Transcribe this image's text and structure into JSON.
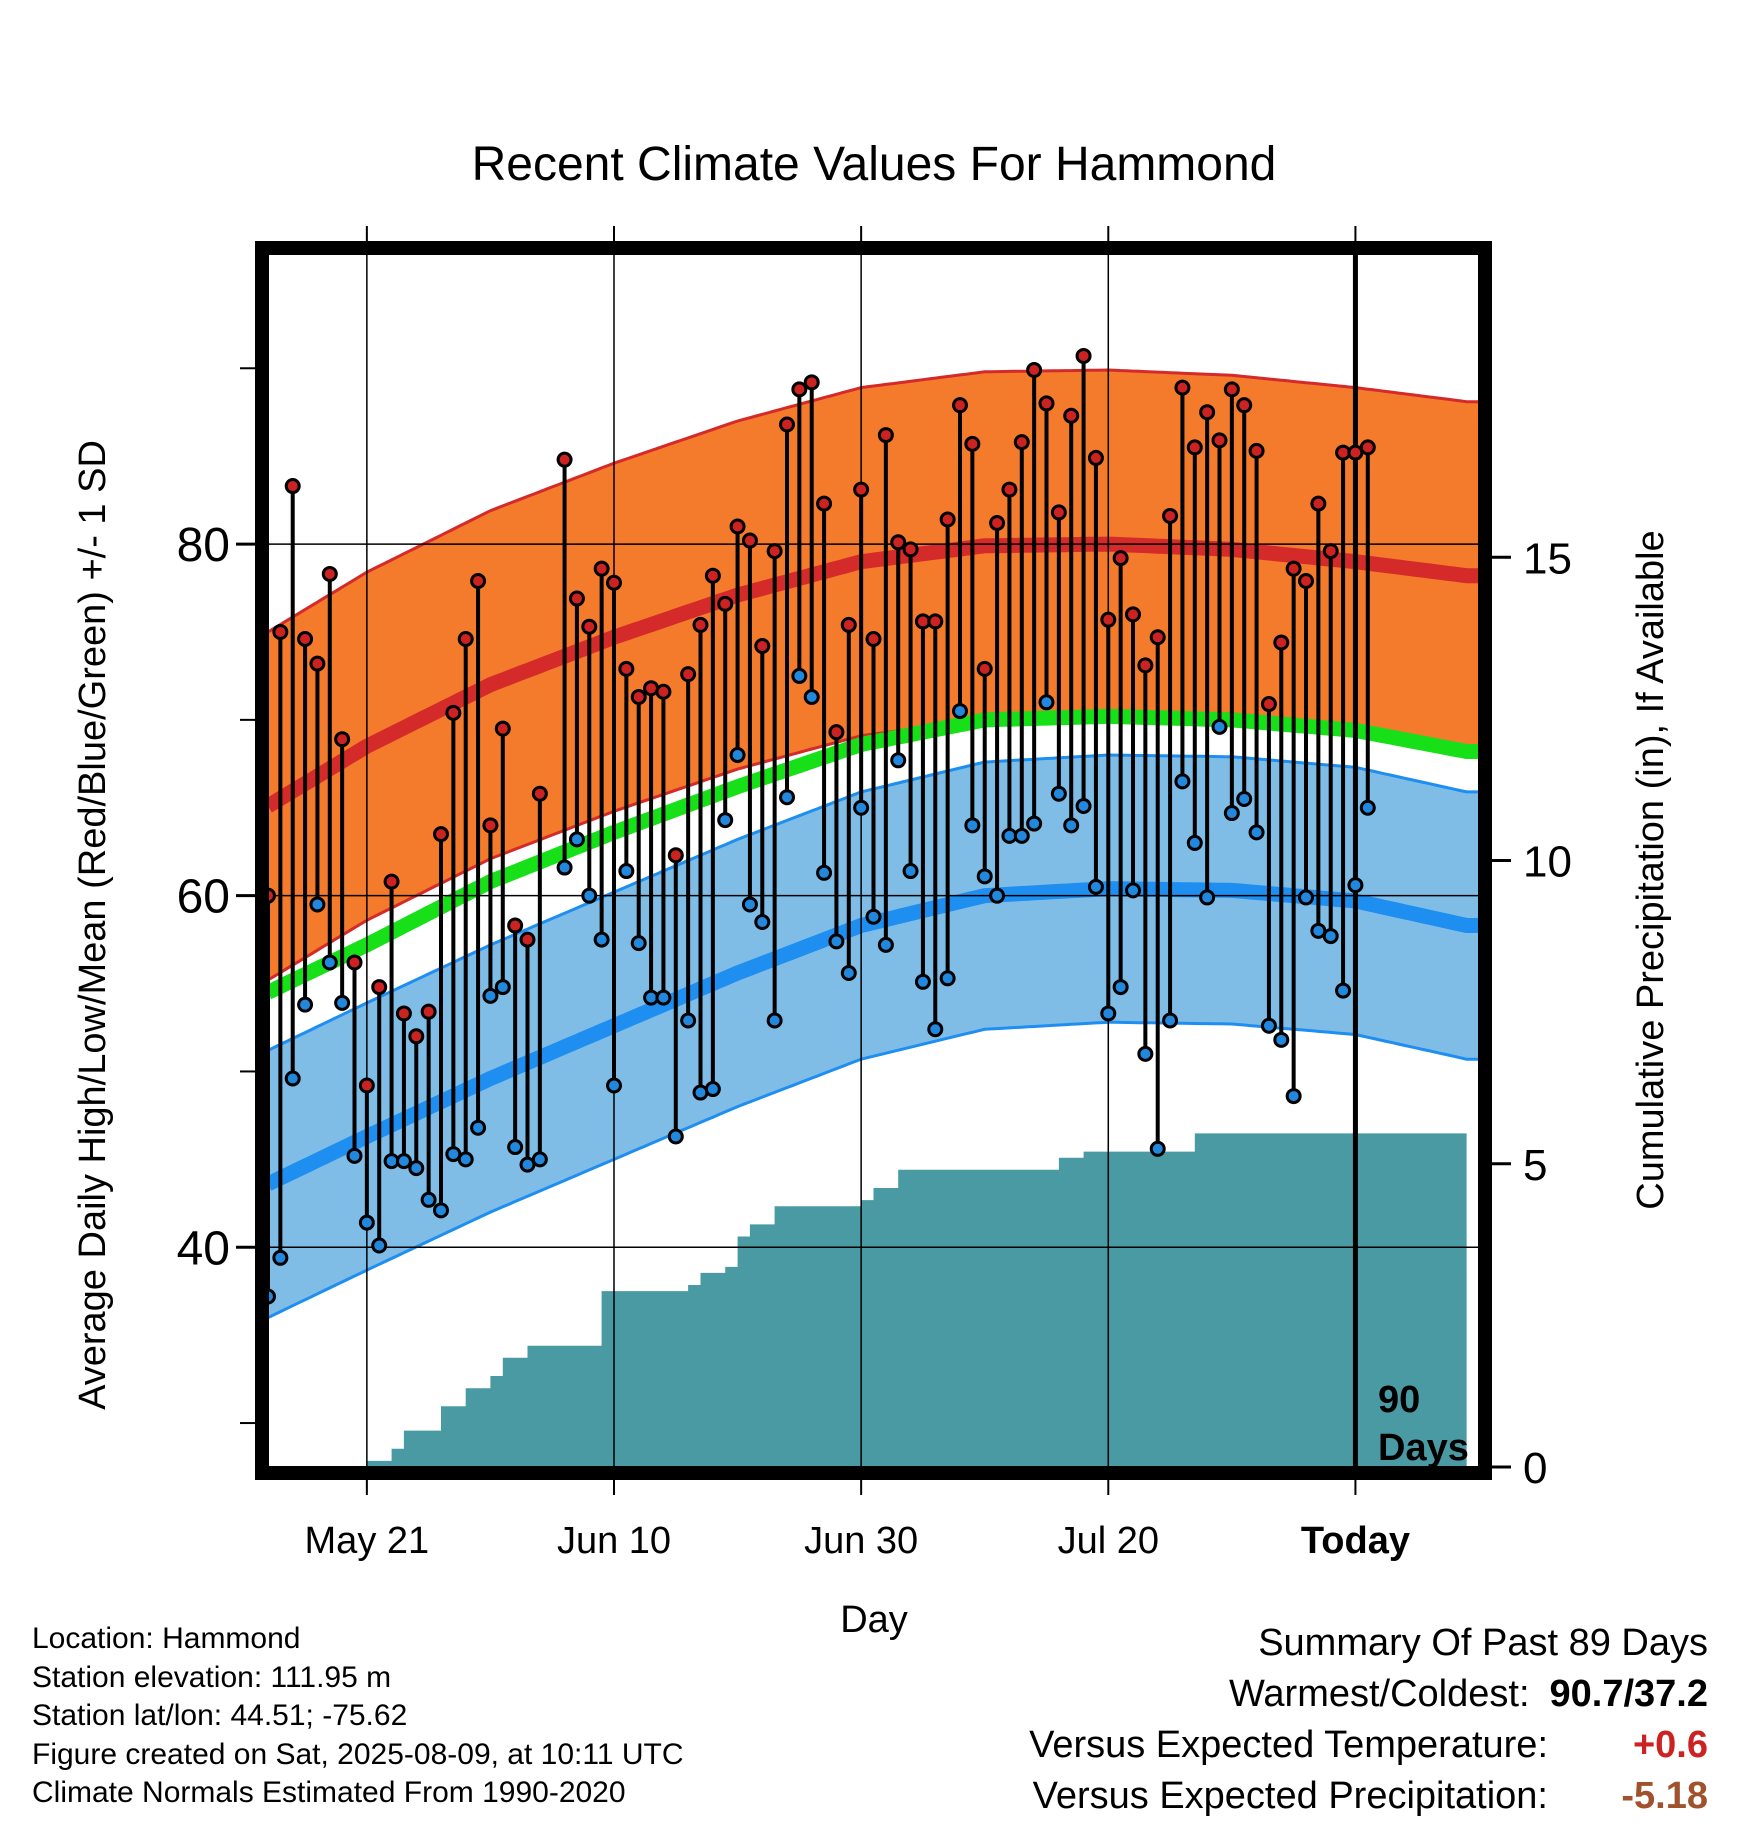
{
  "title": "Recent Climate Values For Hammond",
  "y_left_label": "Average Daily High/Low/Mean (Red/Blue/Green) +/- 1 SD",
  "y_right_label": "Cumulative Precipitation (in), If Available",
  "x_label": "Day",
  "window_label": [
    "90",
    "Days"
  ],
  "info": {
    "location": "Location: Hammond",
    "elevation": "Station elevation: 111.95 m",
    "latlon": "Station lat/lon: 44.51; -75.62",
    "created": "Figure created on Sat, 2025-08-09, at 10:11 UTC",
    "normals": "Climate Normals Estimated From 1990-2020"
  },
  "summary": {
    "heading": "Summary Of Past 89 Days",
    "warm_cold_label": "Warmest/Coldest:",
    "warm_cold_value": "90.7/37.2",
    "temp_label": "Versus Expected Temperature:",
    "temp_value": "+0.6",
    "prcp_label": "Versus Expected Precipitation:",
    "prcp_value": "-5.18"
  },
  "colors": {
    "high_band": "#f47a2c",
    "high_line": "#d42a2a",
    "low_band": "#80bde6",
    "low_line": "#1e8ef0",
    "mean_line": "#18e018",
    "precip": "#4a9aa4",
    "obs_high_marker": "#cc2222",
    "obs_low_marker": "#2288dd"
  },
  "chart_data": {
    "type": "line",
    "title": "Recent Climate Values For Hammond",
    "xlabel": "Day",
    "ylabel": "Average Daily High/Low/Mean (Red/Blue/Green) +/- 1 SD",
    "y2label": "Cumulative Precipitation (in), If Available",
    "x_range": [
      -88,
      10
    ],
    "ylim": [
      27.5,
      96.5
    ],
    "y2lim": [
      0,
      20
    ],
    "x_ticks": [
      {
        "x": -80,
        "label": "May 21"
      },
      {
        "x": -60,
        "label": "Jun 10"
      },
      {
        "x": -40,
        "label": "Jun 30"
      },
      {
        "x": -20,
        "label": "Jul 20"
      },
      {
        "x": 0,
        "label": "Today"
      }
    ],
    "y_ticks": [
      40,
      60,
      80
    ],
    "y2_ticks": [
      0,
      5,
      10,
      15
    ],
    "normals_x": [
      -88,
      -80,
      -70,
      -60,
      -50,
      -40,
      -30,
      -20,
      -10,
      0,
      9
    ],
    "normal_high": [
      65.1,
      68.5,
      72.0,
      74.7,
      77.1,
      79.0,
      79.9,
      80.0,
      79.7,
      79.0,
      78.2
    ],
    "normal_high_sd": 9.9,
    "normal_low": [
      43.6,
      46.3,
      49.6,
      52.6,
      55.6,
      58.3,
      60.0,
      60.4,
      60.3,
      59.7,
      58.3
    ],
    "normal_low_sd": 7.6,
    "normal_mean": [
      54.5,
      57.2,
      60.8,
      63.6,
      66.2,
      68.6,
      70.0,
      70.2,
      70.0,
      69.4,
      68.2
    ],
    "observed": {
      "x_start": -88,
      "highs": [
        60.0,
        75.0,
        83.3,
        74.6,
        73.2,
        78.3,
        68.9,
        56.2,
        49.2,
        54.8,
        60.8,
        53.3,
        52.0,
        53.4,
        63.5,
        70.4,
        74.6,
        77.9,
        64.0,
        69.5,
        58.3,
        57.5,
        65.8,
        null,
        84.8,
        76.9,
        75.3,
        78.6,
        77.8,
        72.9,
        71.3,
        71.8,
        71.6,
        62.3,
        72.6,
        75.4,
        78.2,
        76.6,
        81.0,
        80.2,
        74.2,
        79.6,
        86.8,
        88.8,
        89.2,
        82.3,
        69.3,
        75.4,
        83.1,
        74.6,
        86.2,
        80.1,
        79.7,
        75.6,
        75.6,
        81.4,
        87.9,
        85.7,
        72.9,
        81.2,
        83.1,
        85.8,
        89.9,
        88.0,
        81.8,
        87.3,
        90.7,
        84.9,
        75.7,
        79.2,
        76.0,
        73.1,
        74.7,
        81.6,
        88.9,
        85.5,
        87.5,
        85.9,
        88.8,
        87.9,
        85.3,
        70.9,
        74.4,
        78.6,
        77.9,
        82.3,
        79.6,
        85.2,
        85.2,
        85.5
      ],
      "lows": [
        37.2,
        39.4,
        49.6,
        53.8,
        59.5,
        56.2,
        53.9,
        45.2,
        41.4,
        40.1,
        44.9,
        44.9,
        44.5,
        42.7,
        42.1,
        45.3,
        45.0,
        46.8,
        54.3,
        54.8,
        45.7,
        44.7,
        45.0,
        null,
        61.6,
        63.2,
        60.0,
        57.5,
        49.2,
        61.4,
        57.3,
        54.2,
        54.2,
        46.3,
        52.9,
        48.8,
        49.0,
        64.3,
        68.0,
        59.5,
        58.5,
        52.9,
        65.6,
        72.5,
        71.3,
        61.3,
        57.4,
        55.6,
        65.0,
        58.8,
        57.2,
        67.7,
        61.4,
        55.1,
        52.4,
        55.3,
        70.5,
        64.0,
        61.1,
        60.0,
        63.4,
        63.4,
        64.1,
        71.0,
        65.8,
        64.0,
        65.1,
        60.5,
        53.3,
        54.8,
        60.3,
        51.0,
        45.6,
        52.9,
        66.5,
        63.0,
        59.9,
        69.6,
        64.7,
        65.5,
        63.6,
        52.6,
        51.8,
        48.6,
        59.9,
        58.0,
        57.7,
        54.6,
        60.6,
        65.0
      ]
    },
    "precip_cumulative": {
      "x": [
        -88,
        -83,
        -80,
        -78,
        -77,
        -74,
        -72,
        -70,
        -69,
        -67,
        -62,
        -61,
        -56,
        -54,
        -53,
        -51,
        -50,
        -49,
        -47,
        -45,
        -42,
        -40,
        -39,
        -37,
        -31,
        -29,
        -26,
        -24,
        -22,
        -20,
        -18,
        -13,
        -10,
        -6,
        0,
        9
      ],
      "values": [
        0,
        0,
        0.1,
        0.3,
        0.6,
        1.0,
        1.3,
        1.5,
        1.8,
        2.0,
        2.0,
        2.9,
        2.9,
        3.0,
        3.2,
        3.3,
        3.8,
        4.0,
        4.3,
        4.3,
        4.3,
        4.4,
        4.6,
        4.9,
        4.9,
        4.9,
        4.9,
        5.1,
        5.2,
        5.2,
        5.2,
        5.5,
        5.5,
        5.5,
        5.5,
        5.5
      ]
    },
    "summary": {
      "warmest": 90.7,
      "coldest": 37.2,
      "temp_departure": 0.6,
      "precip_departure": -5.18
    }
  }
}
